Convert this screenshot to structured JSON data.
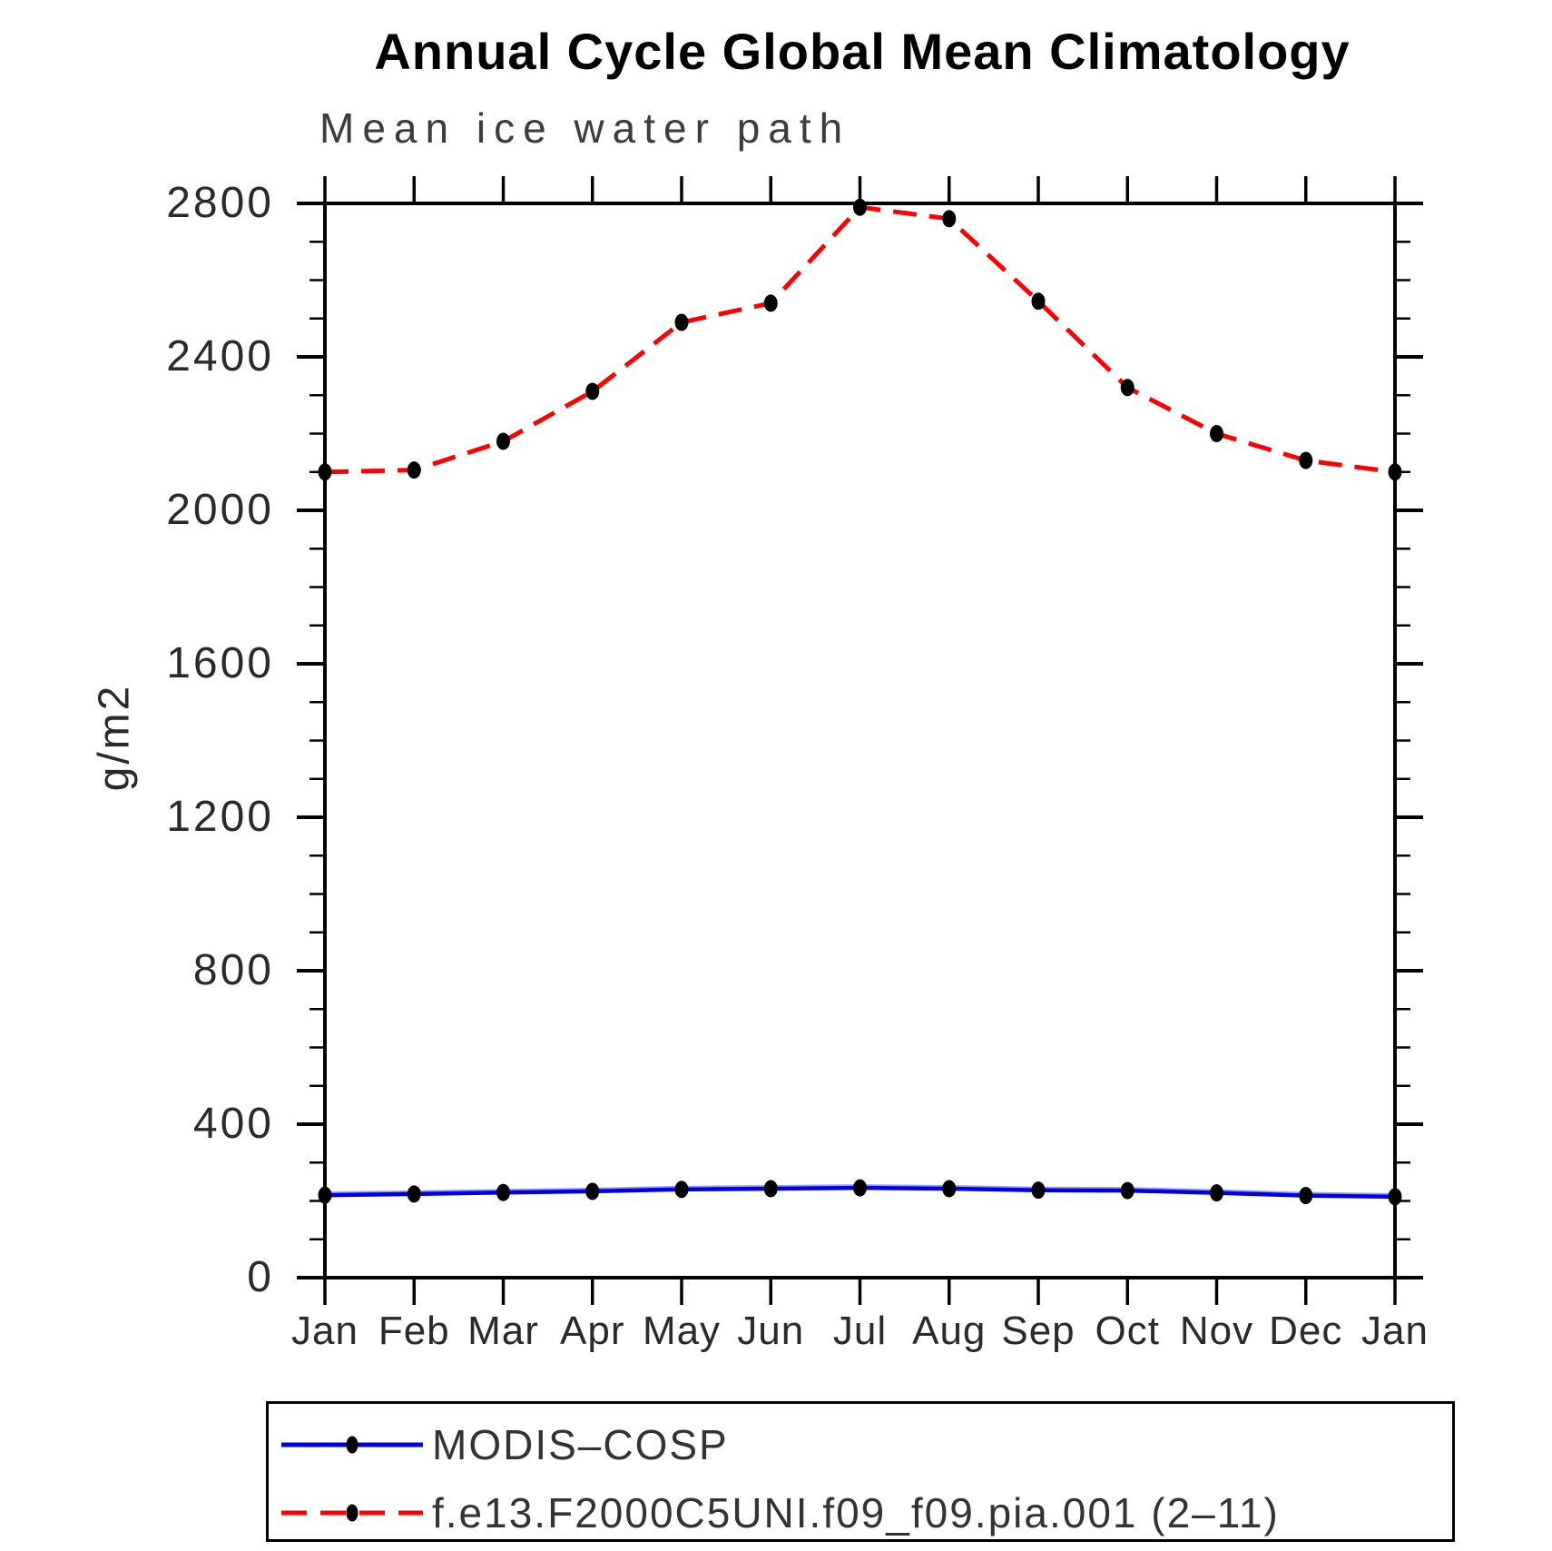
{
  "title": "Annual Cycle Global Mean Climatology",
  "subtitle": "Mean ice water path",
  "ylabel": "g/m2",
  "chart_data": {
    "type": "line",
    "categories": [
      "Jan",
      "Feb",
      "Mar",
      "Apr",
      "May",
      "Jun",
      "Jul",
      "Aug",
      "Sep",
      "Oct",
      "Nov",
      "Dec",
      "Jan"
    ],
    "xlabel": "",
    "ylabel": "g/m2",
    "ylim": [
      0,
      2800
    ],
    "ytick_major_interval": 400,
    "ytick_minor_interval": 100,
    "ytick_labels": [
      "0",
      "400",
      "800",
      "1200",
      "1600",
      "2000",
      "2400",
      "2800"
    ],
    "grid": false,
    "tick_style": "outward-all-four-sides",
    "legend_position": "boxed-below-plot",
    "series": [
      {
        "name": "MODIS–COSP",
        "color": "#0000e0",
        "underlay_color": "#9a9aff",
        "line_style": "solid",
        "marker": "black-filled-ellipse",
        "values": [
          215,
          218,
          222,
          225,
          230,
          232,
          234,
          232,
          228,
          227,
          221,
          214,
          211
        ]
      },
      {
        "name": "f.e13.F2000C5UNI.f09_f09.pia.001 (2–11)",
        "color": "#ff0000",
        "underlay_color": null,
        "line_style": "dashed",
        "marker": "black-filled-ellipse",
        "values": [
          2100,
          2105,
          2180,
          2310,
          2490,
          2540,
          2790,
          2760,
          2545,
          2320,
          2200,
          2130,
          2100
        ]
      }
    ]
  },
  "colors": {
    "background": "#ffffff",
    "frame": "#000000",
    "marker": "#000000",
    "title_text": "#000000",
    "axis_text": "#2a2a2a"
  }
}
